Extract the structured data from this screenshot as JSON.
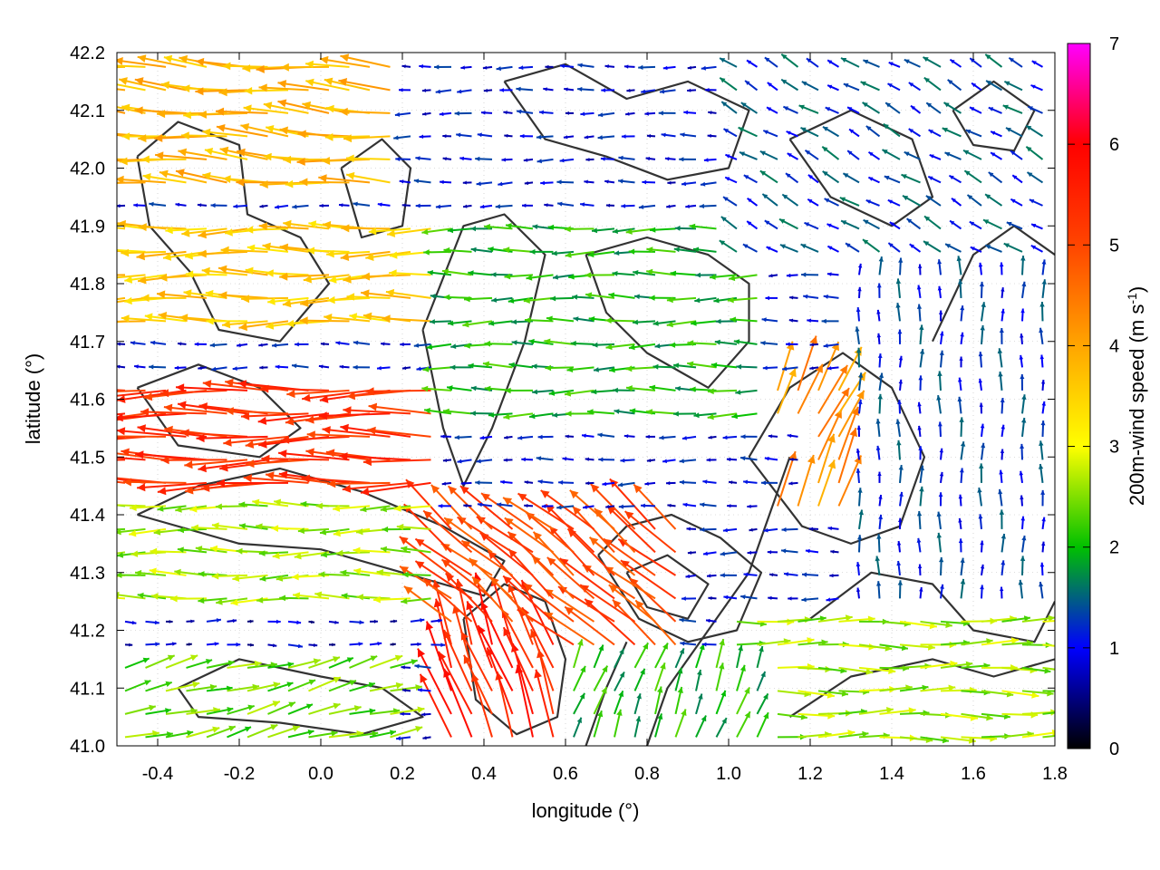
{
  "chart_data": {
    "type": "vector-field",
    "xlabel": "longitude (°)",
    "ylabel": "latitude (°)",
    "xlim": [
      -0.5,
      1.8
    ],
    "ylim": [
      41.0,
      42.2
    ],
    "xticks": [
      "-0.4",
      "-0.2",
      "0.0",
      "0.2",
      "0.4",
      "0.6",
      "0.8",
      "1.0",
      "1.2",
      "1.4",
      "1.6",
      "1.8"
    ],
    "xtick_values": [
      -0.4,
      -0.2,
      0.0,
      0.2,
      0.4,
      0.6,
      0.8,
      1.0,
      1.2,
      1.4,
      1.6,
      1.8
    ],
    "yticks": [
      "41.0",
      "41.1",
      "41.2",
      "41.3",
      "41.4",
      "41.5",
      "41.6",
      "41.7",
      "41.8",
      "41.9",
      "42.0",
      "42.1",
      "42.2"
    ],
    "ytick_values": [
      41.0,
      41.1,
      41.2,
      41.3,
      41.4,
      41.5,
      41.6,
      41.7,
      41.8,
      41.9,
      42.0,
      42.1,
      42.2
    ],
    "grid": true,
    "colorbar": {
      "label_main": "200m-wind speed (m s",
      "label_sup": "-1",
      "label_close": ")",
      "min": 0,
      "max": 7,
      "ticks": [
        "0",
        "1",
        "2",
        "3",
        "4",
        "5",
        "6",
        "7"
      ],
      "tick_values": [
        0,
        1,
        2,
        3,
        4,
        5,
        6,
        7
      ],
      "palette": [
        "#000000",
        "#0000ff",
        "#00c000",
        "#ffff00",
        "#ffa500",
        "#ff4500",
        "#ff0000",
        "#ff00ff"
      ]
    },
    "wind_regions": [
      {
        "lon": [
          -0.5,
          0.3
        ],
        "lat": [
          41.45,
          41.65
        ],
        "speed": 5.3,
        "dir_deg": 180
      },
      {
        "lon": [
          -0.5,
          0.3
        ],
        "lat": [
          41.7,
          41.9
        ],
        "speed": 3.6,
        "dir_deg": 180
      },
      {
        "lon": [
          -0.5,
          0.2
        ],
        "lat": [
          41.95,
          42.2
        ],
        "speed": 3.8,
        "dir_deg": 175
      },
      {
        "lon": [
          0.3,
          1.1
        ],
        "lat": [
          41.55,
          41.9
        ],
        "speed": 2.0,
        "dir_deg": 180
      },
      {
        "lon": [
          0.3,
          1.0
        ],
        "lat": [
          41.9,
          42.2
        ],
        "speed": 1.0,
        "dir_deg": 180
      },
      {
        "lon": [
          1.0,
          1.8
        ],
        "lat": [
          41.85,
          42.2
        ],
        "speed": 1.3,
        "dir_deg": 150
      },
      {
        "lon": [
          -0.5,
          0.3
        ],
        "lat": [
          41.25,
          41.45
        ],
        "speed": 2.6,
        "dir_deg": 180
      },
      {
        "lon": [
          -0.5,
          0.5
        ],
        "lat": [
          41.15,
          41.25
        ],
        "speed": 0.8,
        "dir_deg": 0
      },
      {
        "lon": [
          -0.5,
          0.2
        ],
        "lat": [
          41.0,
          41.15
        ],
        "speed": 2.4,
        "dir_deg": 15
      },
      {
        "lon": [
          0.3,
          0.9
        ],
        "lat": [
          41.15,
          41.4
        ],
        "speed": 5.0,
        "dir_deg": 140
      },
      {
        "lon": [
          0.3,
          0.6
        ],
        "lat": [
          41.0,
          41.2
        ],
        "speed": 5.5,
        "dir_deg": 110
      },
      {
        "lon": [
          1.1,
          1.5
        ],
        "lat": [
          41.4,
          41.65
        ],
        "speed": 4.2,
        "dir_deg": 65
      },
      {
        "lon": [
          1.0,
          1.8
        ],
        "lat": [
          41.0,
          41.25
        ],
        "speed": 2.6,
        "dir_deg": 0
      },
      {
        "lon": [
          1.3,
          1.8
        ],
        "lat": [
          41.25,
          41.85
        ],
        "speed": 1.2,
        "dir_deg": 90
      },
      {
        "lon": [
          0.6,
          1.2
        ],
        "lat": [
          41.45,
          41.55
        ],
        "speed": 1.0,
        "dir_deg": 180
      },
      {
        "lon": [
          0.6,
          1.1
        ],
        "lat": [
          41.0,
          41.15
        ],
        "speed": 2.0,
        "dir_deg": 70
      }
    ],
    "contours": [
      [
        [
          -0.45,
          42.02
        ],
        [
          -0.35,
          42.08
        ],
        [
          -0.2,
          42.04
        ],
        [
          -0.18,
          41.92
        ],
        [
          -0.05,
          41.88
        ],
        [
          0.02,
          41.8
        ],
        [
          -0.1,
          41.7
        ],
        [
          -0.25,
          41.72
        ],
        [
          -0.32,
          41.82
        ],
        [
          -0.42,
          41.9
        ],
        [
          -0.45,
          42.02
        ]
      ],
      [
        [
          0.05,
          42.0
        ],
        [
          0.15,
          42.05
        ],
        [
          0.22,
          42.0
        ],
        [
          0.2,
          41.9
        ],
        [
          0.1,
          41.88
        ],
        [
          0.05,
          42.0
        ]
      ],
      [
        [
          0.25,
          41.72
        ],
        [
          0.35,
          41.9
        ],
        [
          0.45,
          41.92
        ],
        [
          0.55,
          41.85
        ],
        [
          0.5,
          41.7
        ],
        [
          0.42,
          41.55
        ],
        [
          0.35,
          41.45
        ],
        [
          0.3,
          41.55
        ],
        [
          0.25,
          41.72
        ]
      ],
      [
        [
          0.65,
          41.85
        ],
        [
          0.8,
          41.88
        ],
        [
          0.95,
          41.85
        ],
        [
          1.05,
          41.8
        ],
        [
          1.05,
          41.7
        ],
        [
          0.95,
          41.62
        ],
        [
          0.8,
          41.68
        ],
        [
          0.7,
          41.75
        ],
        [
          0.65,
          41.85
        ]
      ],
      [
        [
          0.45,
          42.15
        ],
        [
          0.6,
          42.18
        ],
        [
          0.75,
          42.12
        ],
        [
          0.9,
          42.15
        ],
        [
          1.05,
          42.1
        ],
        [
          1.0,
          42.0
        ],
        [
          0.85,
          41.98
        ],
        [
          0.7,
          42.02
        ],
        [
          0.55,
          42.05
        ],
        [
          0.45,
          42.15
        ]
      ],
      [
        [
          1.05,
          41.5
        ],
        [
          1.15,
          41.62
        ],
        [
          1.28,
          41.68
        ],
        [
          1.4,
          41.62
        ],
        [
          1.48,
          41.5
        ],
        [
          1.42,
          41.38
        ],
        [
          1.3,
          41.35
        ],
        [
          1.18,
          41.38
        ],
        [
          1.05,
          41.5
        ]
      ],
      [
        [
          0.68,
          41.33
        ],
        [
          0.75,
          41.38
        ],
        [
          0.86,
          41.4
        ],
        [
          0.98,
          41.36
        ],
        [
          1.08,
          41.3
        ],
        [
          1.02,
          41.2
        ],
        [
          0.9,
          41.18
        ],
        [
          0.78,
          41.22
        ],
        [
          0.68,
          41.33
        ]
      ],
      [
        [
          0.35,
          41.22
        ],
        [
          0.45,
          41.28
        ],
        [
          0.55,
          41.25
        ],
        [
          0.6,
          41.15
        ],
        [
          0.58,
          41.05
        ],
        [
          0.48,
          41.02
        ],
        [
          0.38,
          41.08
        ],
        [
          0.35,
          41.22
        ]
      ],
      [
        [
          0.75,
          41.3
        ],
        [
          0.85,
          41.33
        ],
        [
          0.95,
          41.28
        ],
        [
          0.9,
          41.22
        ],
        [
          0.8,
          41.24
        ],
        [
          0.75,
          41.3
        ]
      ],
      [
        [
          -0.45,
          41.4
        ],
        [
          -0.3,
          41.45
        ],
        [
          -0.1,
          41.48
        ],
        [
          0.1,
          41.44
        ],
        [
          0.3,
          41.38
        ],
        [
          0.45,
          41.32
        ],
        [
          0.4,
          41.26
        ],
        [
          0.2,
          41.3
        ],
        [
          0.0,
          41.34
        ],
        [
          -0.2,
          41.35
        ],
        [
          -0.45,
          41.4
        ]
      ],
      [
        [
          -0.35,
          41.1
        ],
        [
          -0.2,
          41.15
        ],
        [
          0.0,
          41.12
        ],
        [
          0.15,
          41.1
        ],
        [
          0.25,
          41.05
        ],
        [
          0.1,
          41.02
        ],
        [
          -0.1,
          41.04
        ],
        [
          -0.3,
          41.05
        ],
        [
          -0.35,
          41.1
        ]
      ],
      [
        [
          1.2,
          41.22
        ],
        [
          1.35,
          41.3
        ],
        [
          1.5,
          41.28
        ],
        [
          1.6,
          41.2
        ],
        [
          1.75,
          41.18
        ],
        [
          1.8,
          41.25
        ]
      ],
      [
        [
          1.15,
          41.05
        ],
        [
          1.3,
          41.12
        ],
        [
          1.5,
          41.15
        ],
        [
          1.65,
          41.12
        ],
        [
          1.8,
          41.15
        ]
      ],
      [
        [
          1.5,
          41.7
        ],
        [
          1.6,
          41.85
        ],
        [
          1.7,
          41.9
        ],
        [
          1.8,
          41.85
        ]
      ],
      [
        [
          1.15,
          42.05
        ],
        [
          1.3,
          42.1
        ],
        [
          1.45,
          42.05
        ],
        [
          1.5,
          41.95
        ],
        [
          1.4,
          41.9
        ],
        [
          1.25,
          41.95
        ],
        [
          1.15,
          42.05
        ]
      ],
      [
        [
          1.55,
          42.1
        ],
        [
          1.65,
          42.15
        ],
        [
          1.75,
          42.1
        ],
        [
          1.7,
          42.03
        ],
        [
          1.6,
          42.04
        ],
        [
          1.55,
          42.1
        ]
      ],
      [
        [
          0.8,
          41.0
        ],
        [
          0.85,
          41.1
        ],
        [
          0.95,
          41.2
        ],
        [
          1.05,
          41.3
        ],
        [
          1.1,
          41.4
        ],
        [
          1.15,
          41.5
        ]
      ],
      [
        [
          0.65,
          41.0
        ],
        [
          0.7,
          41.1
        ],
        [
          0.75,
          41.18
        ]
      ],
      [
        [
          -0.45,
          41.62
        ],
        [
          -0.3,
          41.66
        ],
        [
          -0.15,
          41.62
        ],
        [
          -0.05,
          41.55
        ],
        [
          -0.15,
          41.5
        ],
        [
          -0.35,
          41.52
        ],
        [
          -0.45,
          41.62
        ]
      ]
    ]
  }
}
